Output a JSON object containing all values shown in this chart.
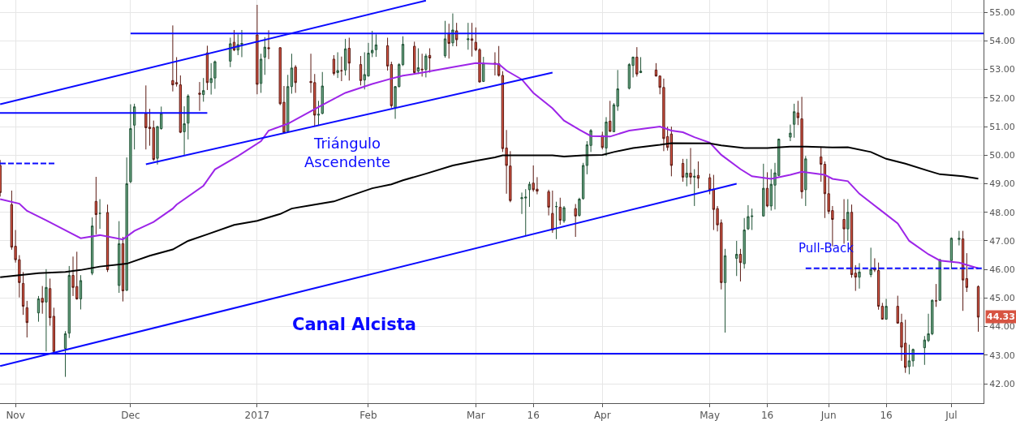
{
  "chart_data": {
    "type": "candlestick",
    "x": [
      "2016-10-28",
      "2016-10-31",
      "2016-11-01",
      "2016-11-02",
      "2016-11-03",
      "2016-11-04",
      "2016-11-07",
      "2016-11-08",
      "2016-11-09",
      "2016-11-10",
      "2016-11-11",
      "2016-11-14",
      "2016-11-15",
      "2016-11-16",
      "2016-11-17",
      "2016-11-18",
      "2016-11-21",
      "2016-11-22",
      "2016-11-23",
      "2016-11-25",
      "2016-11-28",
      "2016-11-29",
      "2016-11-30",
      "2016-12-01",
      "2016-12-02",
      "2016-12-05",
      "2016-12-06",
      "2016-12-07",
      "2016-12-08",
      "2016-12-09",
      "2016-12-12",
      "2016-12-13",
      "2016-12-14",
      "2016-12-15",
      "2016-12-16",
      "2016-12-19",
      "2016-12-20",
      "2016-12-21",
      "2016-12-22",
      "2016-12-23",
      "2016-12-27",
      "2016-12-28",
      "2016-12-29",
      "2016-12-30",
      "2017-01-03",
      "2017-01-04",
      "2017-01-05",
      "2017-01-06",
      "2017-01-09",
      "2017-01-10",
      "2017-01-11",
      "2017-01-12",
      "2017-01-13",
      "2017-01-17",
      "2017-01-18",
      "2017-01-19",
      "2017-01-20",
      "2017-01-23",
      "2017-01-24",
      "2017-01-25",
      "2017-01-26",
      "2017-01-27",
      "2017-01-30",
      "2017-01-31",
      "2017-02-01",
      "2017-02-02",
      "2017-02-03",
      "2017-02-06",
      "2017-02-07",
      "2017-02-08",
      "2017-02-09",
      "2017-02-10",
      "2017-02-13",
      "2017-02-14",
      "2017-02-15",
      "2017-02-16",
      "2017-02-17",
      "2017-02-21",
      "2017-02-22",
      "2017-02-23",
      "2017-02-24",
      "2017-02-27",
      "2017-02-28",
      "2017-03-01",
      "2017-03-02",
      "2017-03-03",
      "2017-03-06",
      "2017-03-07",
      "2017-03-08",
      "2017-03-09",
      "2017-03-10",
      "2017-03-13",
      "2017-03-14",
      "2017-03-15",
      "2017-03-16",
      "2017-03-17",
      "2017-03-20",
      "2017-03-21",
      "2017-03-22",
      "2017-03-23",
      "2017-03-24",
      "2017-03-27",
      "2017-03-28",
      "2017-03-29",
      "2017-03-30",
      "2017-03-31",
      "2017-04-03",
      "2017-04-04",
      "2017-04-05",
      "2017-04-06",
      "2017-04-07",
      "2017-04-10",
      "2017-04-11",
      "2017-04-12",
      "2017-04-13",
      "2017-04-17",
      "2017-04-18",
      "2017-04-19",
      "2017-04-20",
      "2017-04-21",
      "2017-04-24",
      "2017-04-25",
      "2017-04-26",
      "2017-04-27",
      "2017-04-28",
      "2017-05-01",
      "2017-05-02",
      "2017-05-03",
      "2017-05-04",
      "2017-05-05",
      "2017-05-08",
      "2017-05-09",
      "2017-05-10",
      "2017-05-11",
      "2017-05-12",
      "2017-05-15",
      "2017-05-16",
      "2017-05-17",
      "2017-05-18",
      "2017-05-19",
      "2017-05-22",
      "2017-05-23",
      "2017-05-24",
      "2017-05-25",
      "2017-05-26",
      "2017-05-30",
      "2017-05-31",
      "2017-06-01",
      "2017-06-02",
      "2017-06-05",
      "2017-06-06",
      "2017-06-07",
      "2017-06-08",
      "2017-06-09",
      "2017-06-12",
      "2017-06-13",
      "2017-06-14",
      "2017-06-15",
      "2017-06-16",
      "2017-06-19",
      "2017-06-20",
      "2017-06-21",
      "2017-06-22",
      "2017-06-23",
      "2017-06-26",
      "2017-06-27",
      "2017-06-28",
      "2017-06-29",
      "2017-06-30",
      "2017-07-03",
      "2017-07-05",
      "2017-07-06",
      "2017-07-07",
      "2017-07-10"
    ],
    "ohlc": [
      [
        49.64,
        49.83,
        48.55,
        48.69
      ],
      [
        48.27,
        48.76,
        46.69,
        46.78
      ],
      [
        46.81,
        47.38,
        46.24,
        46.34
      ],
      [
        46.34,
        46.5,
        45.02,
        45.54
      ],
      [
        45.51,
        45.91,
        44.41,
        44.71
      ],
      [
        44.66,
        44.9,
        43.62,
        44.14
      ],
      [
        44.48,
        45.07,
        44.17,
        44.97
      ],
      [
        44.99,
        45.42,
        44.45,
        44.85
      ],
      [
        44.86,
        46.01,
        43.13,
        45.37
      ],
      [
        45.33,
        45.68,
        44.03,
        44.31
      ],
      [
        44.36,
        44.66,
        43.1,
        43.13
      ],
      [
        43.23,
        43.84,
        42.24,
        43.75
      ],
      [
        43.77,
        46.12,
        43.6,
        45.79
      ],
      [
        45.79,
        46.45,
        45.07,
        45.37
      ],
      [
        45.4,
        46.62,
        44.94,
        44.97
      ],
      [
        44.97,
        45.8,
        44.6,
        45.61
      ],
      [
        45.87,
        47.82,
        45.8,
        47.52
      ],
      [
        48.38,
        49.24,
        47.23,
        47.92
      ],
      [
        47.96,
        48.46,
        47.42,
        47.96
      ],
      [
        47.99,
        48.27,
        45.91,
        45.99
      ],
      [
        45.44,
        47.69,
        45.18,
        46.9
      ],
      [
        46.9,
        47.14,
        44.88,
        45.25
      ],
      [
        45.27,
        49.92,
        45.25,
        49.0
      ],
      [
        49.07,
        51.78,
        49.02,
        50.93
      ],
      [
        51.05,
        51.8,
        50.2,
        51.69
      ],
      [
        51.46,
        52.44,
        50.2,
        50.96
      ],
      [
        50.98,
        51.62,
        50.33,
        50.93
      ],
      [
        50.96,
        51.21,
        49.8,
        49.85
      ],
      [
        49.89,
        51.02,
        49.67,
        51.0
      ],
      [
        50.93,
        51.7,
        50.89,
        51.46
      ],
      [
        52.61,
        54.54,
        52.23,
        52.46
      ],
      [
        52.54,
        53.43,
        52.4,
        52.49
      ],
      [
        52.46,
        52.79,
        50.77,
        50.8
      ],
      [
        50.82,
        51.71,
        50.01,
        51.1
      ],
      [
        51.12,
        52.13,
        50.55,
        52.07
      ],
      [
        52.17,
        52.56,
        51.55,
        52.13
      ],
      [
        52.12,
        52.7,
        51.87,
        52.26
      ],
      [
        53.58,
        53.83,
        52.28,
        52.54
      ],
      [
        52.54,
        53.22,
        52.12,
        52.68
      ],
      [
        52.7,
        53.31,
        52.32,
        53.27
      ],
      [
        53.29,
        54.11,
        53.08,
        53.9
      ],
      [
        53.95,
        54.38,
        53.64,
        53.68
      ],
      [
        53.68,
        54.23,
        53.5,
        53.87
      ],
      [
        53.88,
        54.38,
        53.43,
        53.91
      ],
      [
        54.21,
        55.26,
        52.13,
        52.48
      ],
      [
        52.51,
        53.55,
        52.18,
        53.36
      ],
      [
        53.43,
        54.13,
        52.81,
        53.78
      ],
      [
        53.76,
        54.37,
        53.36,
        53.73
      ],
      [
        53.76,
        53.78,
        51.75,
        51.8
      ],
      [
        51.85,
        52.42,
        50.75,
        50.79
      ],
      [
        50.83,
        52.81,
        50.82,
        52.4
      ],
      [
        52.4,
        53.55,
        52.15,
        53.05
      ],
      [
        53.08,
        53.15,
        52.18,
        52.54
      ],
      [
        52.58,
        53.55,
        52.18,
        52.54
      ],
      [
        52.54,
        52.84,
        51.0,
        51.4
      ],
      [
        51.4,
        51.9,
        51.05,
        51.43
      ],
      [
        51.46,
        52.91,
        51.43,
        52.42
      ],
      [
        53.36,
        53.5,
        52.79,
        52.86
      ],
      [
        52.89,
        53.6,
        52.7,
        52.96
      ],
      [
        52.96,
        53.45,
        52.59,
        52.95
      ],
      [
        52.98,
        54.07,
        52.79,
        53.72
      ],
      [
        53.74,
        54.11,
        52.61,
        53.22
      ],
      [
        53.17,
        53.47,
        52.44,
        52.61
      ],
      [
        52.63,
        53.6,
        52.3,
        52.82
      ],
      [
        52.77,
        53.93,
        52.75,
        53.57
      ],
      [
        53.58,
        54.35,
        53.43,
        53.67
      ],
      [
        53.69,
        54.23,
        53.44,
        53.86
      ],
      [
        53.83,
        54.11,
        52.96,
        53.12
      ],
      [
        53.17,
        53.27,
        51.66,
        51.73
      ],
      [
        51.66,
        52.42,
        51.27,
        52.4
      ],
      [
        52.4,
        53.22,
        52.37,
        53.17
      ],
      [
        53.17,
        54.16,
        53.12,
        53.88
      ],
      [
        53.81,
        53.97,
        52.84,
        52.89
      ],
      [
        52.94,
        53.74,
        52.84,
        53.06
      ],
      [
        53.01,
        53.55,
        52.75,
        52.99
      ],
      [
        53.0,
        53.55,
        52.72,
        53.47
      ],
      [
        53.49,
        53.74,
        52.89,
        53.4
      ],
      [
        53.48,
        54.7,
        53.41,
        54.07
      ],
      [
        54.26,
        54.6,
        53.38,
        53.91
      ],
      [
        53.93,
        54.96,
        53.81,
        54.38
      ],
      [
        54.35,
        54.63,
        53.81,
        54.04
      ],
      [
        54.04,
        54.63,
        53.69,
        54.07
      ],
      [
        54.07,
        54.63,
        53.45,
        54.02
      ],
      [
        53.95,
        54.47,
        53.64,
        53.69
      ],
      [
        53.69,
        53.74,
        52.54,
        52.56
      ],
      [
        52.58,
        53.44,
        52.56,
        53.22
      ],
      [
        53.22,
        53.6,
        52.79,
        53.19
      ],
      [
        53.2,
        53.82,
        52.75,
        52.79
      ],
      [
        52.79,
        52.94,
        50.11,
        50.23
      ],
      [
        50.25,
        50.88,
        48.65,
        49.64
      ],
      [
        49.62,
        50.14,
        48.35,
        48.41
      ],
      [
        48.48,
        48.69,
        47.94,
        48.51
      ],
      [
        48.5,
        48.81,
        47.16,
        48.53
      ],
      [
        48.79,
        49.07,
        48.19,
        48.98
      ],
      [
        49.02,
        49.64,
        48.72,
        48.79
      ],
      [
        48.81,
        49.23,
        48.63,
        48.74
      ],
      [
        48.72,
        48.79,
        47.89,
        48.18
      ],
      [
        47.96,
        48.76,
        47.28,
        47.38
      ],
      [
        48.2,
        48.37,
        47.06,
        48.2
      ],
      [
        48.18,
        48.51,
        47.56,
        47.72
      ],
      [
        47.7,
        48.22,
        47.63,
        48.16
      ],
      [
        48.13,
        48.29,
        47.14,
        47.87
      ],
      [
        47.89,
        48.51,
        47.85,
        48.46
      ],
      [
        48.48,
        49.73,
        48.44,
        49.64
      ],
      [
        49.64,
        50.49,
        49.33,
        50.36
      ],
      [
        50.34,
        50.91,
        50.11,
        50.86
      ],
      [
        50.69,
        50.82,
        50.2,
        50.27
      ],
      [
        50.25,
        51.33,
        49.97,
        51.16
      ],
      [
        51.19,
        51.9,
        50.82,
        50.83
      ],
      [
        50.82,
        51.82,
        50.82,
        51.76
      ],
      [
        51.71,
        52.98,
        51.55,
        52.32
      ],
      [
        52.34,
        53.22,
        52.3,
        53.17
      ],
      [
        53.14,
        53.45,
        52.72,
        53.43
      ],
      [
        53.43,
        53.78,
        52.75,
        52.84
      ],
      [
        52.89,
        53.43,
        52.87,
        52.94
      ],
      [
        52.98,
        53.22,
        52.75,
        52.77
      ],
      [
        52.77,
        52.79,
        52.13,
        52.37
      ],
      [
        52.37,
        52.68,
        50.14,
        50.58
      ],
      [
        50.65,
        51.0,
        50.16,
        50.27
      ],
      [
        50.74,
        51.0,
        49.26,
        49.64
      ],
      [
        49.71,
        49.87,
        49.07,
        49.23
      ],
      [
        49.23,
        49.87,
        48.91,
        49.37
      ],
      [
        49.37,
        50.25,
        48.98,
        49.23
      ],
      [
        49.23,
        49.51,
        48.22,
        49.26
      ],
      [
        49.29,
        49.78,
        48.84,
        49.19
      ],
      [
        49.21,
        49.35,
        48.63,
        48.79
      ],
      [
        48.81,
        49.31,
        47.38,
        48.1
      ],
      [
        48.13,
        48.22,
        47.33,
        47.56
      ],
      [
        47.63,
        47.75,
        45.3,
        45.54
      ],
      [
        45.54,
        46.72,
        43.79,
        46.48
      ],
      [
        46.39,
        47.0,
        45.77,
        46.53
      ],
      [
        46.53,
        46.72,
        45.58,
        46.24
      ],
      [
        46.2,
        47.8,
        46.03,
        47.38
      ],
      [
        47.42,
        48.25,
        47.38,
        47.85
      ],
      [
        47.85,
        48.13,
        47.38,
        47.87
      ],
      [
        47.87,
        49.7,
        47.85,
        48.84
      ],
      [
        48.84,
        49.4,
        48.18,
        48.22
      ],
      [
        48.22,
        49.51,
        48.06,
        48.98
      ],
      [
        48.95,
        49.73,
        48.1,
        49.38
      ],
      [
        49.29,
        50.58,
        49.26,
        50.56
      ],
      [
        50.63,
        51.07,
        50.49,
        50.77
      ],
      [
        51.08,
        51.8,
        50.61,
        51.52
      ],
      [
        51.48,
        51.9,
        51.05,
        51.31
      ],
      [
        51.27,
        52.04,
        48.48,
        48.72
      ],
      [
        48.79,
        49.97,
        48.22,
        49.87
      ],
      [
        49.94,
        50.3,
        49.07,
        49.68
      ],
      [
        49.68,
        49.78,
        47.8,
        48.65
      ],
      [
        48.65,
        49.21,
        47.94,
        48.03
      ],
      [
        48.06,
        48.22,
        46.81,
        47.75
      ],
      [
        47.75,
        48.46,
        46.9,
        47.42
      ],
      [
        47.42,
        48.46,
        47.0,
        48.0
      ],
      [
        48.0,
        48.27,
        45.71,
        45.82
      ],
      [
        45.87,
        46.15,
        45.25,
        45.73
      ],
      [
        45.73,
        46.22,
        45.33,
        45.91
      ],
      [
        45.82,
        46.76,
        45.73,
        46.0
      ],
      [
        46.04,
        46.39,
        45.91,
        45.98
      ],
      [
        45.96,
        46.24,
        44.59,
        44.71
      ],
      [
        44.71,
        44.83,
        44.24,
        44.26
      ],
      [
        44.26,
        44.97,
        44.24,
        44.71
      ],
      [
        44.71,
        45.08,
        44.1,
        44.12
      ],
      [
        44.14,
        44.45,
        42.8,
        43.28
      ],
      [
        43.42,
        44.24,
        42.38,
        42.57
      ],
      [
        42.6,
        43.37,
        42.33,
        42.8
      ],
      [
        42.8,
        43.23,
        42.6,
        43.2
      ],
      [
        43.26,
        43.67,
        42.66,
        43.53
      ],
      [
        43.51,
        44.45,
        43.46,
        43.75
      ],
      [
        43.75,
        44.95,
        43.7,
        44.92
      ],
      [
        44.9,
        45.49,
        44.69,
        44.9
      ],
      [
        44.92,
        46.37,
        44.9,
        46.34
      ],
      [
        46.31,
        47.12,
        46.01,
        47.09
      ],
      [
        47.05,
        47.35,
        46.84,
        47.09
      ],
      [
        47.07,
        47.35,
        44.55,
        45.63
      ],
      [
        45.68,
        46.57,
        45.21,
        45.37
      ],
      [
        45.4,
        45.44,
        43.82,
        44.33
      ]
    ],
    "series": [
      {
        "type": "line",
        "color": "#9d25e8",
        "x": [
          "2016-10-28",
          "2016-11-02",
          "2016-11-04",
          "2016-11-09",
          "2016-11-14",
          "2016-11-18",
          "2016-11-23",
          "2016-11-29",
          "2016-12-02",
          "2016-12-07",
          "2016-12-12",
          "2016-12-13",
          "2016-12-20",
          "2016-12-23",
          "2016-12-29",
          "2017-01-04",
          "2017-01-06",
          "2017-01-11",
          "2017-01-17",
          "2017-01-20",
          "2017-01-26",
          "2017-02-02",
          "2017-02-07",
          "2017-02-10",
          "2017-02-16",
          "2017-02-23",
          "2017-03-01",
          "2017-03-07",
          "2017-03-09",
          "2017-03-13",
          "2017-03-16",
          "2017-03-21",
          "2017-03-24",
          "2017-03-28",
          "2017-03-31",
          "2017-04-05",
          "2017-04-10",
          "2017-04-18",
          "2017-04-21",
          "2017-04-24",
          "2017-04-27",
          "2017-05-01",
          "2017-05-04",
          "2017-05-09",
          "2017-05-12",
          "2017-05-17",
          "2017-05-22",
          "2017-05-25",
          "2017-05-31",
          "2017-06-02",
          "2017-06-06",
          "2017-06-09",
          "2017-06-14",
          "2017-06-19",
          "2017-06-22",
          "2017-06-27",
          "2017-06-30",
          "2017-07-05",
          "2017-07-10"
        ],
        "values": [
          48.46,
          48.3,
          48.05,
          47.72,
          47.37,
          47.09,
          47.2,
          47.05,
          47.35,
          47.66,
          48.13,
          48.27,
          48.93,
          49.5,
          49.97,
          50.49,
          50.86,
          51.1,
          51.54,
          51.76,
          52.18,
          52.49,
          52.68,
          52.78,
          52.91,
          53.08,
          53.22,
          53.19,
          52.96,
          52.65,
          52.18,
          51.64,
          51.21,
          50.89,
          50.67,
          50.65,
          50.86,
          51.0,
          50.86,
          50.8,
          50.63,
          50.44,
          50.01,
          49.51,
          49.26,
          49.17,
          49.31,
          49.42,
          49.31,
          49.17,
          49.09,
          48.65,
          48.13,
          47.61,
          47.0,
          46.53,
          46.31,
          46.24,
          46.04
        ]
      },
      {
        "type": "line",
        "color": "#000000",
        "x": [
          "2016-10-28",
          "2016-11-07",
          "2016-11-14",
          "2016-11-18",
          "2016-11-23",
          "2016-11-30",
          "2016-12-06",
          "2016-12-12",
          "2016-12-16",
          "2016-12-21",
          "2016-12-28",
          "2017-01-03",
          "2017-01-09",
          "2017-01-12",
          "2017-01-18",
          "2017-01-23",
          "2017-01-26",
          "2017-02-02",
          "2017-02-07",
          "2017-02-10",
          "2017-02-16",
          "2017-02-23",
          "2017-03-01",
          "2017-03-06",
          "2017-03-08",
          "2017-03-16",
          "2017-03-21",
          "2017-03-24",
          "2017-03-29",
          "2017-04-03",
          "2017-04-06",
          "2017-04-11",
          "2017-04-18",
          "2017-04-21",
          "2017-05-01",
          "2017-05-04",
          "2017-05-10",
          "2017-05-16",
          "2017-05-22",
          "2017-05-26",
          "2017-06-02",
          "2017-06-06",
          "2017-06-12",
          "2017-06-16",
          "2017-06-21",
          "2017-06-27",
          "2017-06-30",
          "2017-07-06",
          "2017-07-10"
        ],
        "values": [
          45.73,
          45.87,
          45.91,
          45.98,
          46.1,
          46.2,
          46.48,
          46.7,
          47.0,
          47.23,
          47.56,
          47.7,
          47.94,
          48.13,
          48.27,
          48.38,
          48.52,
          48.84,
          48.98,
          49.12,
          49.35,
          49.64,
          49.8,
          49.92,
          49.99,
          49.99,
          49.99,
          49.95,
          49.99,
          50.01,
          50.11,
          50.25,
          50.36,
          50.42,
          50.41,
          50.34,
          50.25,
          50.25,
          50.3,
          50.3,
          50.27,
          50.28,
          50.11,
          49.87,
          49.7,
          49.45,
          49.33,
          49.26,
          49.18
        ]
      },
      {
        "type": "line",
        "color": "#0a0aff",
        "x": [
          "2016-10-28",
          "2017-02-16"
        ],
        "values": [
          51.78,
          55.41
        ]
      },
      {
        "type": "line",
        "color": "#0a0aff",
        "x": [
          "2016-12-05",
          "2017-03-21"
        ],
        "values": [
          49.68,
          52.89
        ]
      },
      {
        "type": "line",
        "color": "#0a0aff",
        "x": [
          "2016-10-28",
          "2017-05-08"
        ],
        "values": [
          42.62,
          49.0
        ]
      },
      {
        "type": "line",
        "color": "#0a0aff",
        "x": [
          "2016-12-01",
          "2017-07-11T09:00"
        ],
        "values": [
          54.26,
          54.26
        ]
      },
      {
        "type": "line",
        "color": "#0a0aff",
        "x": [
          "2016-10-27T23:00",
          "2016-12-21"
        ],
        "values": [
          51.48,
          51.48
        ]
      },
      {
        "type": "line",
        "color": "#0a0aff",
        "line_style": "dashed",
        "x": [
          "2016-10-27T23:00",
          "2016-11-11T12:00"
        ],
        "values": [
          49.71,
          49.71
        ]
      },
      {
        "type": "line",
        "color": "#0a0aff",
        "line_style": "dashed",
        "x": [
          "2017-05-26",
          "2017-07-11T09:00"
        ],
        "values": [
          46.04,
          46.04
        ]
      }
    ],
    "ref_lines": [
      {
        "axis": "y",
        "value": 43.05,
        "color": "#0a0aff"
      }
    ],
    "annotations": [
      "Triángulo\nAscendente",
      "Canal Alcista",
      "Pull-Back",
      {
        "text": "44.33",
        "y": 44.33
      }
    ],
    "xlim": [
      "2016-10-27T23:00",
      "2017-07-11T09:00"
    ],
    "xticks": [
      {
        "value": "2016-11-01",
        "label": "Nov"
      },
      {
        "value": "2016-12-01",
        "label": "Dec"
      },
      {
        "value": "2017-01-03",
        "label": "2017"
      },
      {
        "value": "2017-02-01",
        "label": "Feb"
      },
      {
        "value": "2017-03-01",
        "label": "Mar"
      },
      {
        "value": "2017-03-16",
        "label": "16"
      },
      {
        "value": "2017-04-03",
        "label": "Apr"
      },
      {
        "value": "2017-05-01",
        "label": "May"
      },
      {
        "value": "2017-05-16",
        "label": "16"
      },
      {
        "value": "2017-06-01",
        "label": "Jun"
      },
      {
        "value": "2017-06-16",
        "label": "16"
      },
      {
        "value": "2017-07-03",
        "label": "Jul"
      }
    ],
    "ylim": [
      41.32,
      55.43
    ],
    "yticks": [
      {
        "value": 42,
        "label": "42.00"
      },
      {
        "value": 43,
        "label": "43.00"
      },
      {
        "value": 44,
        "label": "44.00"
      },
      {
        "value": 45,
        "label": "45.00"
      },
      {
        "value": 46,
        "label": "46.00"
      },
      {
        "value": 47,
        "label": "47.00"
      },
      {
        "value": 48,
        "label": "48.00"
      },
      {
        "value": 49,
        "label": "49.00"
      },
      {
        "value": 50,
        "label": "50.00"
      },
      {
        "value": 51,
        "label": "51.00"
      },
      {
        "value": 52,
        "label": "52.00"
      },
      {
        "value": 53,
        "label": "53.00"
      },
      {
        "value": 54,
        "label": "54.00"
      },
      {
        "value": 55,
        "label": "55.00"
      }
    ],
    "grid": true,
    "marker": "none"
  }
}
